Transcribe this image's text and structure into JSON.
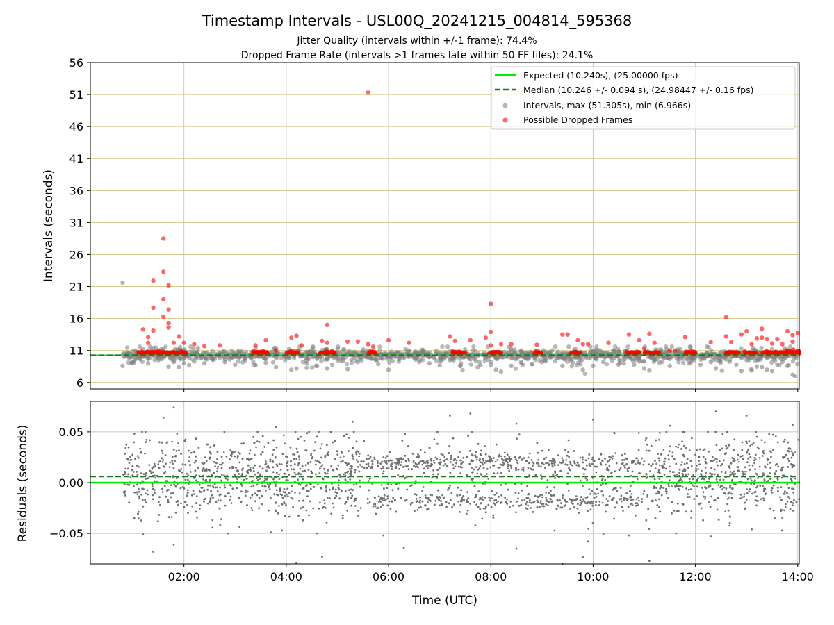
{
  "chart_data": [
    {
      "type": "scatter",
      "title": "Timestamp Intervals - USL00Q_20241215_004814_595368",
      "subtitle_lines": [
        "Jitter Quality (intervals within +/-1 frame): 74.4%",
        "Dropped Frame Rate (intervals >1 frames late within 50 FF files): 24.1%"
      ],
      "xlabel": "",
      "ylabel": "Intervals (seconds)",
      "xlim_hours": [
        0.17,
        14.03
      ],
      "ylim": [
        5,
        56
      ],
      "yticks": [
        6,
        11,
        16,
        21,
        26,
        31,
        36,
        41,
        46,
        51,
        56
      ],
      "xticks_hours": [
        2,
        4,
        6,
        8,
        10,
        12,
        14
      ],
      "xtick_labels": [
        "02:00",
        "04:00",
        "06:00",
        "08:00",
        "10:00",
        "12:00",
        "14:00"
      ],
      "grid": true,
      "legend_position": "top-right",
      "expected_interval": 10.24,
      "median_interval": 10.246,
      "legend": [
        "Expected (10.240s), (25.00000 fps)",
        "Median (10.246 +/- 0.094 s), (24.98447 +/- 0.16 fps)",
        "Intervals, max (51.305s), min (6.966s)",
        "Possible Dropped Frames"
      ],
      "series": [
        {
          "name": "Intervals, max (51.305s), min (6.966s)",
          "color": "#808080",
          "points": [
            [
              0.8,
              21.6
            ],
            [
              0.8,
              8.6
            ],
            [
              1.0,
              9.2
            ],
            [
              1.2,
              11.2
            ],
            [
              1.3,
              9.0
            ],
            [
              1.4,
              11.4
            ],
            [
              1.5,
              9.5
            ],
            [
              1.6,
              10.9
            ],
            [
              1.7,
              8.5
            ],
            [
              1.8,
              9.2
            ],
            [
              1.9,
              8.4
            ],
            [
              2.0,
              9.0
            ],
            [
              2.1,
              8.7
            ],
            [
              2.2,
              9.3
            ],
            [
              2.4,
              9.0
            ],
            [
              2.6,
              9.7
            ],
            [
              2.8,
              9.2
            ],
            [
              3.0,
              8.8
            ],
            [
              3.2,
              9.5
            ],
            [
              3.4,
              8.7
            ],
            [
              3.6,
              9.1
            ],
            [
              3.8,
              8.4
            ],
            [
              4.1,
              8.0
            ],
            [
              4.2,
              8.2
            ],
            [
              4.4,
              9.0
            ],
            [
              4.6,
              8.6
            ],
            [
              4.8,
              8.2
            ],
            [
              4.9,
              8.8
            ],
            [
              5.2,
              8.1
            ],
            [
              5.4,
              9.2
            ],
            [
              5.6,
              11.0
            ],
            [
              5.8,
              8.9
            ],
            [
              6.0,
              8.0
            ],
            [
              6.2,
              9.3
            ],
            [
              6.4,
              11.0
            ],
            [
              6.6,
              9.2
            ],
            [
              6.8,
              9.0
            ],
            [
              7.0,
              8.7
            ],
            [
              7.2,
              9.5
            ],
            [
              7.4,
              8.6
            ],
            [
              7.6,
              9.6
            ],
            [
              7.8,
              8.7
            ],
            [
              8.0,
              8.8
            ],
            [
              8.1,
              8.0
            ],
            [
              8.2,
              7.7
            ],
            [
              8.4,
              8.6
            ],
            [
              8.6,
              9.0
            ],
            [
              8.8,
              8.9
            ],
            [
              9.0,
              9.2
            ],
            [
              9.2,
              11.0
            ],
            [
              9.4,
              8.6
            ],
            [
              9.6,
              9.1
            ],
            [
              9.8,
              8.0
            ],
            [
              10.0,
              8.6
            ],
            [
              10.2,
              9.2
            ],
            [
              10.4,
              11.0
            ],
            [
              10.6,
              9.0
            ],
            [
              10.8,
              8.8
            ],
            [
              11.0,
              8.2
            ],
            [
              11.1,
              7.9
            ],
            [
              11.3,
              9.1
            ],
            [
              11.5,
              8.6
            ],
            [
              11.7,
              11.2
            ],
            [
              11.9,
              9.0
            ],
            [
              12.1,
              8.8
            ],
            [
              12.3,
              9.2
            ],
            [
              12.4,
              8.2
            ],
            [
              12.6,
              9.6
            ],
            [
              12.8,
              8.8
            ],
            [
              12.9,
              7.8
            ],
            [
              13.0,
              9.5
            ],
            [
              13.1,
              7.9
            ],
            [
              13.2,
              8.5
            ],
            [
              13.3,
              8.4
            ],
            [
              13.4,
              8.0
            ],
            [
              13.5,
              7.8
            ],
            [
              13.6,
              8.8
            ],
            [
              13.7,
              9.2
            ],
            [
              13.8,
              8.6
            ],
            [
              13.9,
              7.2
            ],
            [
              13.95,
              6.97
            ]
          ]
        },
        {
          "name": "Possible Dropped Frames",
          "color": "#ff0000",
          "points": [
            [
              1.2,
              14.3
            ],
            [
              1.3,
              12.2
            ],
            [
              1.3,
              13.1
            ],
            [
              1.4,
              21.9
            ],
            [
              1.4,
              17.7
            ],
            [
              1.4,
              14.1
            ],
            [
              1.5,
              11.0
            ],
            [
              1.6,
              28.5
            ],
            [
              1.6,
              23.3
            ],
            [
              1.6,
              19.0
            ],
            [
              1.6,
              16.3
            ],
            [
              1.7,
              17.4
            ],
            [
              1.7,
              15.3
            ],
            [
              1.7,
              14.6
            ],
            [
              1.7,
              21.2
            ],
            [
              1.8,
              12.2
            ],
            [
              1.9,
              13.2
            ],
            [
              2.0,
              12.2
            ],
            [
              2.2,
              12.0
            ],
            [
              2.4,
              11.7
            ],
            [
              2.7,
              11.8
            ],
            [
              3.4,
              11.8
            ],
            [
              3.6,
              12.6
            ],
            [
              3.8,
              11.0
            ],
            [
              4.1,
              13.0
            ],
            [
              4.2,
              13.3
            ],
            [
              4.3,
              11.8
            ],
            [
              4.7,
              12.5
            ],
            [
              4.8,
              15.0
            ],
            [
              4.8,
              12.2
            ],
            [
              5.2,
              12.4
            ],
            [
              5.4,
              12.4
            ],
            [
              5.6,
              51.3
            ],
            [
              5.6,
              12.0
            ],
            [
              5.7,
              11.6
            ],
            [
              6.0,
              12.6
            ],
            [
              6.4,
              12.2
            ],
            [
              7.2,
              13.2
            ],
            [
              7.3,
              12.5
            ],
            [
              7.6,
              12.6
            ],
            [
              7.9,
              13.0
            ],
            [
              8.0,
              13.9
            ],
            [
              8.0,
              18.3
            ],
            [
              8.0,
              11.8
            ],
            [
              8.2,
              12.0
            ],
            [
              8.4,
              12.0
            ],
            [
              8.9,
              11.9
            ],
            [
              9.4,
              13.5
            ],
            [
              9.5,
              13.5
            ],
            [
              9.7,
              12.6
            ],
            [
              9.8,
              12.0
            ],
            [
              9.9,
              12.0
            ],
            [
              10.3,
              12.2
            ],
            [
              10.7,
              13.5
            ],
            [
              10.9,
              12.6
            ],
            [
              11.0,
              11.3
            ],
            [
              11.1,
              13.6
            ],
            [
              11.2,
              12.2
            ],
            [
              11.5,
              11.0
            ],
            [
              11.6,
              11.0
            ],
            [
              11.8,
              13.1
            ],
            [
              12.3,
              12.3
            ],
            [
              12.6,
              16.2
            ],
            [
              12.6,
              13.2
            ],
            [
              12.7,
              12.3
            ],
            [
              12.9,
              13.5
            ],
            [
              13.0,
              14.0
            ],
            [
              13.1,
              12.0
            ],
            [
              13.2,
              12.9
            ],
            [
              13.3,
              14.4
            ],
            [
              13.3,
              13.0
            ],
            [
              13.4,
              12.8
            ],
            [
              13.5,
              12.1
            ],
            [
              13.6,
              12.8
            ],
            [
              13.7,
              12.0
            ],
            [
              13.8,
              14.0
            ],
            [
              13.9,
              12.4
            ],
            [
              13.9,
              13.4
            ],
            [
              14.0,
              13.7
            ]
          ]
        }
      ]
    },
    {
      "type": "scatter",
      "title": "",
      "xlabel": "Time (UTC)",
      "ylabel": "Residuals (seconds)",
      "xlim_hours": [
        0.17,
        14.03
      ],
      "ylim": [
        -0.08,
        0.08
      ],
      "yticks": [
        -0.05,
        0.0,
        0.05
      ],
      "ytick_labels": [
        "−0.05",
        "0.00",
        "0.05"
      ],
      "xticks_hours": [
        2,
        4,
        6,
        8,
        10,
        12,
        14
      ],
      "xtick_labels": [
        "02:00",
        "04:00",
        "06:00",
        "08:00",
        "10:00",
        "12:00",
        "14:00"
      ],
      "grid": true,
      "expected_residual": 0.0,
      "median_residual": 0.006,
      "series": [
        {
          "name": "",
          "color": "#707070",
          "points": [
            [
              1.8,
              0.074
            ],
            [
              1.6,
              0.064
            ],
            [
              7.6,
              0.068
            ],
            [
              7.2,
              0.066
            ],
            [
              12.4,
              0.07
            ],
            [
              3.8,
              0.055
            ],
            [
              5.3,
              0.06
            ],
            [
              8.5,
              0.058
            ],
            [
              10.0,
              0.062
            ],
            [
              11.5,
              0.056
            ],
            [
              13.0,
              0.066
            ],
            [
              13.9,
              0.057
            ],
            [
              1.4,
              -0.068
            ],
            [
              1.2,
              -0.051
            ],
            [
              1.8,
              -0.061
            ],
            [
              3.7,
              -0.049
            ],
            [
              4.2,
              -0.079
            ],
            [
              4.6,
              -0.05
            ],
            [
              4.7,
              -0.073
            ],
            [
              6.3,
              -0.064
            ],
            [
              5.9,
              -0.052
            ],
            [
              8.5,
              -0.065
            ],
            [
              9.4,
              -0.08
            ],
            [
              9.8,
              -0.073
            ],
            [
              9.9,
              -0.058
            ],
            [
              10.2,
              -0.051
            ],
            [
              10.7,
              -0.052
            ],
            [
              11.1,
              -0.077
            ],
            [
              12.3,
              -0.053
            ],
            [
              13.1,
              -0.046
            ]
          ]
        }
      ]
    }
  ]
}
